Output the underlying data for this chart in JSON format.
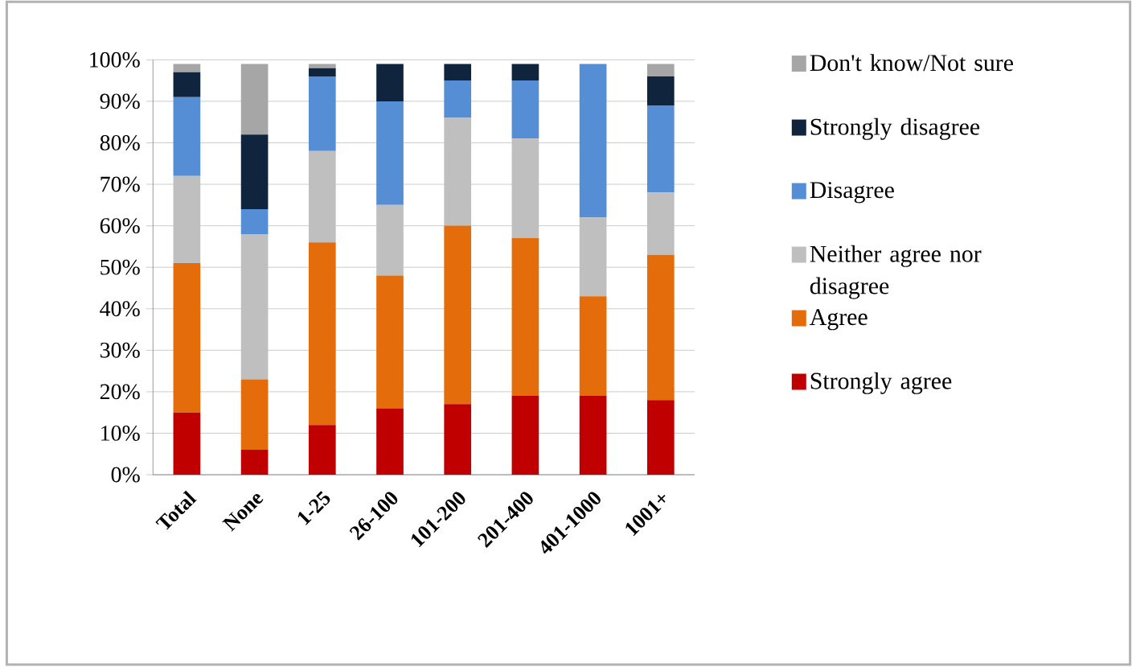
{
  "chart_data": {
    "type": "bar",
    "stacked": true,
    "categories": [
      "Total",
      "None",
      "1-25",
      "26-100",
      "101-200",
      "201-400",
      "401-1000",
      "1001+"
    ],
    "series": [
      {
        "name": "Strongly agree",
        "color": "#c00000",
        "values": [
          15,
          6,
          12,
          16,
          17,
          19,
          19,
          18
        ]
      },
      {
        "name": "Agree",
        "color": "#e46c0a",
        "values": [
          36,
          17,
          44,
          32,
          43,
          38,
          24,
          35
        ]
      },
      {
        "name": "Neither agree nor disagree",
        "color": "#bfbfbf",
        "values": [
          21,
          35,
          22,
          17,
          26,
          24,
          19,
          15
        ]
      },
      {
        "name": "Disagree",
        "color": "#558ed5",
        "values": [
          19,
          6,
          18,
          25,
          9,
          14,
          37,
          21
        ]
      },
      {
        "name": "Strongly disagree",
        "color": "#10243e",
        "values": [
          6,
          18,
          2,
          9,
          4,
          4,
          null,
          7
        ]
      },
      {
        "name": "Don't know/Not sure",
        "color": "#a6a6a6",
        "values": [
          2,
          17,
          1,
          null,
          null,
          null,
          null,
          3
        ]
      }
    ],
    "ylim": [
      0,
      100
    ],
    "yticks": [
      {
        "value": 0,
        "label": "0%"
      },
      {
        "value": 10,
        "label": "10%"
      },
      {
        "value": 20,
        "label": "20%"
      },
      {
        "value": 30,
        "label": "30%"
      },
      {
        "value": 40,
        "label": "40%"
      },
      {
        "value": 50,
        "label": "50%"
      },
      {
        "value": 60,
        "label": "60%"
      },
      {
        "value": 70,
        "label": "70%"
      },
      {
        "value": 80,
        "label": "80%"
      },
      {
        "value": 90,
        "label": "90%"
      },
      {
        "value": 100,
        "label": "100%"
      }
    ],
    "grid": "y",
    "legend": "right"
  }
}
